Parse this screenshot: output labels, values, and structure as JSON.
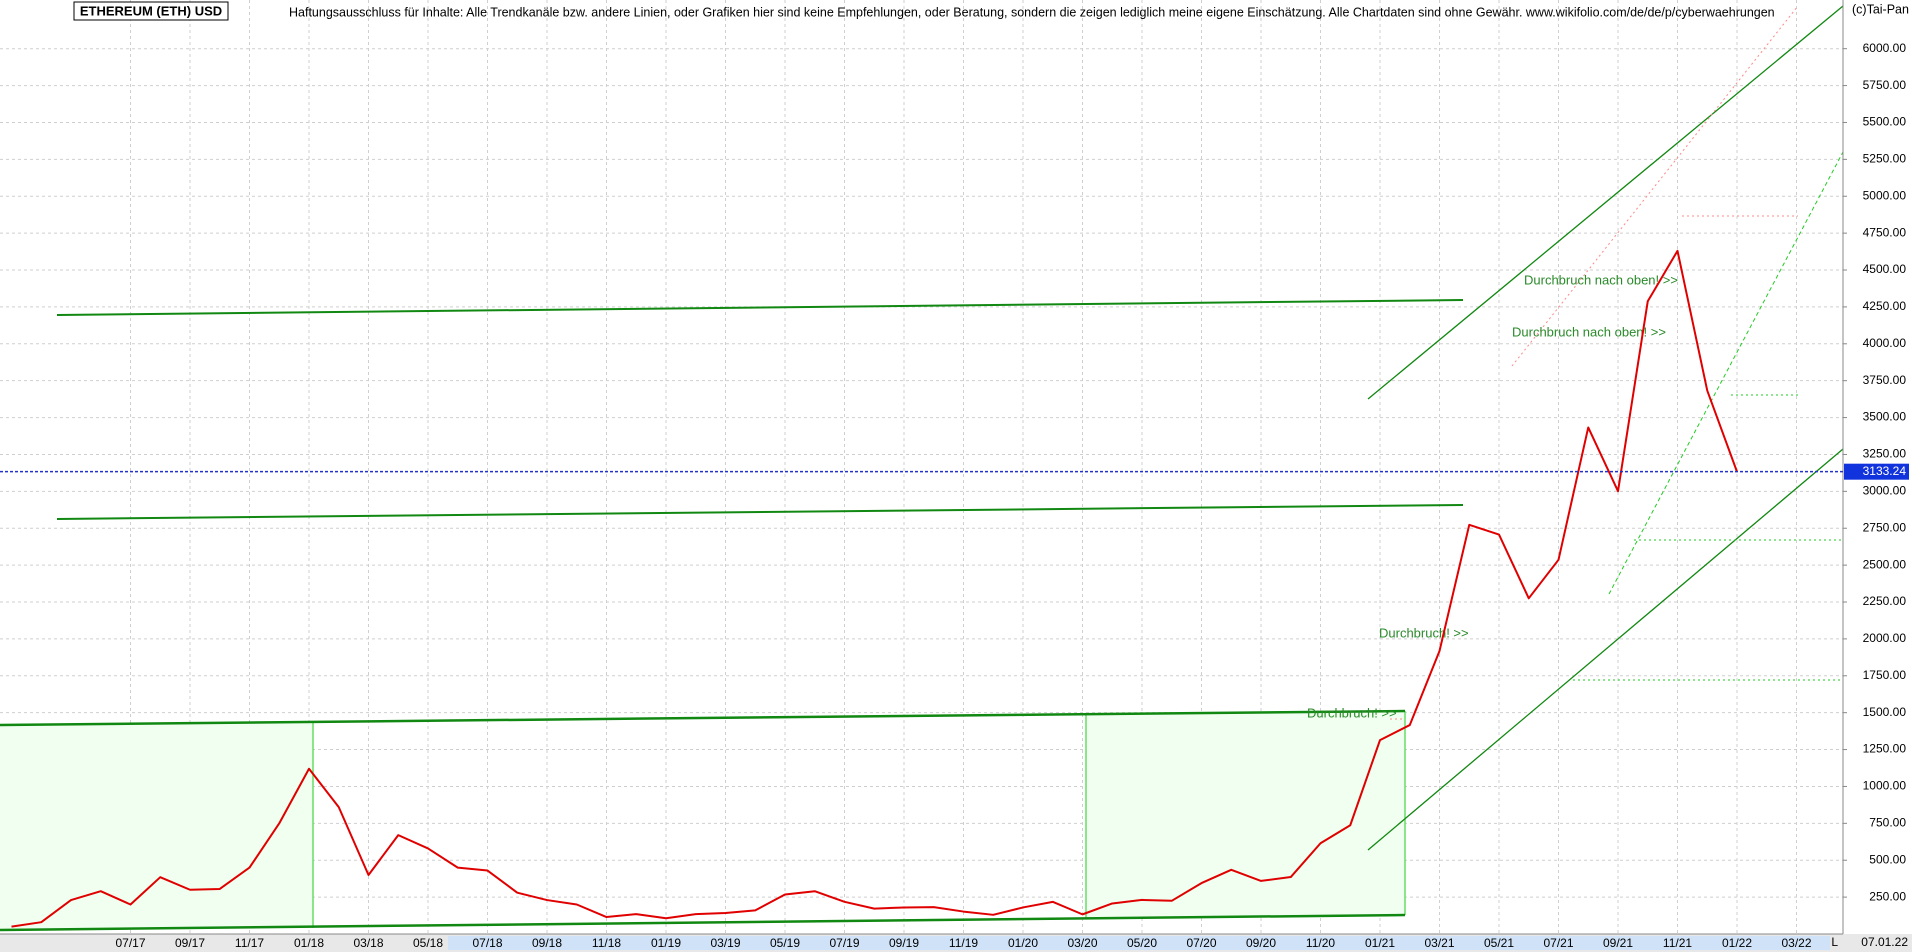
{
  "chart_data": {
    "type": "line",
    "title": "ETHEREUM (ETH) USD",
    "subtitle": "Haftungsausschluss für Inhalte: Alle Trendkanäle bzw. andere Linien, oder Grafiken hier sind keine Empfehlungen, oder Beratung, sondern die zeigen lediglich meine eigene Einschätzung. Alle Chartdaten sind ohne Gewähr.  www.wikifolio.com/de/de/p/cyberwaehrungen",
    "copyright": "(c)Tai-Pan",
    "categories": [
      null,
      null,
      null,
      null,
      "07/17",
      null,
      "09/17",
      null,
      "11/17",
      null,
      "01/18",
      null,
      "03/18",
      null,
      "05/18",
      null,
      "07/18",
      null,
      "09/18",
      null,
      "11/18",
      null,
      "01/19",
      null,
      "03/19",
      null,
      "05/19",
      null,
      "07/19",
      null,
      "09/19",
      null,
      "11/19",
      null,
      "01/20",
      null,
      "03/20",
      null,
      "05/20",
      null,
      "07/20",
      null,
      "09/20",
      null,
      "11/20",
      null,
      "01/21",
      null,
      "03/21",
      null,
      "05/21",
      null,
      "07/21",
      null,
      "09/21",
      null,
      "11/21",
      null,
      "01/22",
      null,
      "03/22"
    ],
    "series": [
      {
        "name": "ETH",
        "color": "#e00000",
        "values": [
          50,
          80,
          230,
          290,
          200,
          385,
          300,
          305,
          450,
          750,
          1120,
          860,
          400,
          670,
          580,
          450,
          430,
          280,
          230,
          200,
          115,
          135,
          107,
          135,
          142,
          160,
          268,
          290,
          218,
          172,
          180,
          182,
          152,
          130,
          180,
          218,
          133,
          207,
          231,
          225,
          345,
          435,
          360,
          386,
          615,
          737,
          1314,
          1416,
          1918,
          2773,
          2707,
          2275,
          2536,
          3433,
          3001,
          4288,
          4630,
          3683,
          3133,
          null,
          null
        ]
      }
    ],
    "last_price": 3133.24,
    "last_date": "07.01.22",
    "axis_marker": "L",
    "annotations": [
      "Durchbruch nach oben! >>",
      "Durchbruch nach oben! >>",
      "Durchbruch! >>",
      "Durchbruch! >>"
    ],
    "ylim": [
      0,
      6330
    ],
    "yticks": [
      {
        "value": 250,
        "label": "250.00"
      },
      {
        "value": 500,
        "label": "500.00"
      },
      {
        "value": 750,
        "label": "750.00"
      },
      {
        "value": 1000,
        "label": "1000.00"
      },
      {
        "value": 1250,
        "label": "1250.00"
      },
      {
        "value": 1500,
        "label": "1500.00"
      },
      {
        "value": 1750,
        "label": "1750.00"
      },
      {
        "value": 2000,
        "label": "2000.00"
      },
      {
        "value": 2250,
        "label": "2250.00"
      },
      {
        "value": 2500,
        "label": "2500.00"
      },
      {
        "value": 2750,
        "label": "2750.00"
      },
      {
        "value": 3000,
        "label": "3000.00"
      },
      {
        "value": 3250,
        "label": "3250.00"
      },
      {
        "value": 3500,
        "label": "3500.00"
      },
      {
        "value": 3750,
        "label": "3750.00"
      },
      {
        "value": 4000,
        "label": "4000.00"
      },
      {
        "value": 4250,
        "label": "4250.00"
      },
      {
        "value": 4500,
        "label": "4500.00"
      },
      {
        "value": 4750,
        "label": "4750.00"
      },
      {
        "value": 5000,
        "label": "5000.00"
      },
      {
        "value": 5250,
        "label": "5250.00"
      },
      {
        "value": 5500,
        "label": "5500.00"
      },
      {
        "value": 5750,
        "label": "5750.00"
      },
      {
        "value": 6000,
        "label": "6000.00"
      }
    ],
    "grid": true
  }
}
